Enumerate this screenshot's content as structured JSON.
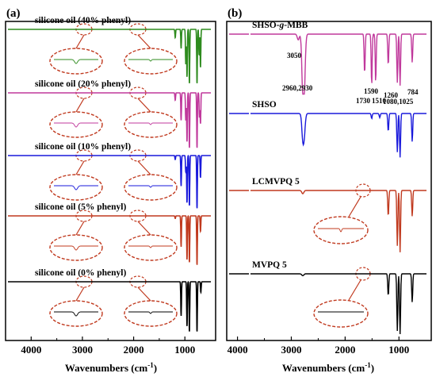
{
  "chart_data": [
    {
      "type": "line",
      "panel_label": "(a)",
      "xlabel": "Wavenumbers (cm",
      "xlabel_sup": "-1",
      "xlabel_close": ")",
      "xlim": [
        4500,
        400
      ],
      "x_ticks": [
        4000,
        3000,
        2000,
        1000
      ],
      "x_tick_labels": [
        "4000",
        "3000",
        "2000",
        "1000"
      ],
      "series": [
        {
          "name": "silicone oil (40% phenyl)",
          "color": "#2e8b1e",
          "peaks": [
            [
              3070,
              0.06
            ],
            [
              3050,
              0.08
            ],
            [
              2960,
              0.05
            ],
            [
              1590,
              0.07
            ],
            [
              1430,
              0.13
            ],
            [
              1260,
              0.3
            ],
            [
              1125,
              0.55
            ],
            [
              1090,
              0.75
            ],
            [
              1020,
              0.85
            ],
            [
              800,
              0.85
            ],
            [
              740,
              0.4
            ],
            [
              700,
              0.6
            ]
          ]
        },
        {
          "name": "silicone oil (20% phenyl)",
          "color": "#c0399c",
          "peaks": [
            [
              3050,
              0.05
            ],
            [
              2960,
              0.08
            ],
            [
              1430,
              0.12
            ],
            [
              1260,
              0.45
            ],
            [
              1125,
              0.45
            ],
            [
              1090,
              0.8
            ],
            [
              1020,
              0.9
            ],
            [
              800,
              0.9
            ],
            [
              730,
              0.4
            ],
            [
              700,
              0.5
            ]
          ]
        },
        {
          "name": "silicone oil (10% phenyl)",
          "color": "#1a1adb",
          "peaks": [
            [
              3050,
              0.03
            ],
            [
              2960,
              0.12
            ],
            [
              1430,
              0.07
            ],
            [
              1260,
              0.55
            ],
            [
              1125,
              0.3
            ],
            [
              1090,
              0.85
            ],
            [
              1020,
              0.9
            ],
            [
              800,
              0.95
            ],
            [
              700,
              0.4
            ]
          ]
        },
        {
          "name": "silicone oil (5% phenyl)",
          "color": "#c0391e",
          "peaks": [
            [
              3050,
              0.02
            ],
            [
              2960,
              0.14
            ],
            [
              1430,
              0.05
            ],
            [
              1260,
              0.6
            ],
            [
              1090,
              0.85
            ],
            [
              1020,
              0.9
            ],
            [
              800,
              0.95
            ],
            [
              700,
              0.3
            ]
          ]
        },
        {
          "name": "silicone oil (0% phenyl)",
          "color": "#000000",
          "peaks": [
            [
              2960,
              0.15
            ],
            [
              1260,
              0.65
            ],
            [
              1090,
              0.85
            ],
            [
              1020,
              0.95
            ],
            [
              800,
              0.95
            ],
            [
              690,
              0.2
            ]
          ]
        }
      ]
    },
    {
      "type": "line",
      "panel_label": "(b)",
      "xlabel": "Wavenumbers (cm",
      "xlabel_sup": "-1",
      "xlabel_close": ")",
      "xlim": [
        4200,
        400
      ],
      "x_ticks": [
        4000,
        3000,
        2000,
        1000
      ],
      "x_tick_labels": [
        "4000",
        "3000",
        "2000",
        "1000"
      ],
      "series": [
        {
          "name": "SHSO-g-MBB",
          "name_prefix": "SHSO-",
          "name_italic": "g",
          "name_suffix": "-MBB",
          "color": "#c0399c",
          "peaks": [
            [
              3050,
              0.1
            ],
            [
              2960,
              0.9
            ],
            [
              2930,
              0.85
            ],
            [
              1730,
              0.7
            ],
            [
              1590,
              0.9
            ],
            [
              1510,
              0.85
            ],
            [
              1260,
              0.55
            ],
            [
              1080,
              0.85
            ],
            [
              1025,
              0.9
            ],
            [
              784,
              0.5
            ]
          ]
        },
        {
          "name": "SHSO",
          "color": "#1a1adb",
          "peaks": [
            [
              2960,
              0.45
            ],
            [
              2930,
              0.35
            ],
            [
              1590,
              0.1
            ],
            [
              1430,
              0.08
            ],
            [
              1260,
              0.35
            ],
            [
              1080,
              0.75
            ],
            [
              1025,
              0.85
            ],
            [
              784,
              0.55
            ]
          ]
        },
        {
          "name": "LCMVPQ 5",
          "color": "#c0391e",
          "peaks": [
            [
              2960,
              0.05
            ],
            [
              1260,
              0.4
            ],
            [
              1080,
              0.85
            ],
            [
              1025,
              0.95
            ],
            [
              784,
              0.4
            ]
          ]
        },
        {
          "name": "MVPQ 5",
          "color": "#000000",
          "peaks": [
            [
              2960,
              0.03
            ],
            [
              1260,
              0.35
            ],
            [
              1080,
              0.9
            ],
            [
              1025,
              0.95
            ],
            [
              784,
              0.45
            ]
          ]
        }
      ],
      "annotations": [
        "3050",
        "2960,2930",
        "1590",
        "1730",
        "1510",
        "1260",
        "1080,1025",
        "784"
      ]
    }
  ]
}
